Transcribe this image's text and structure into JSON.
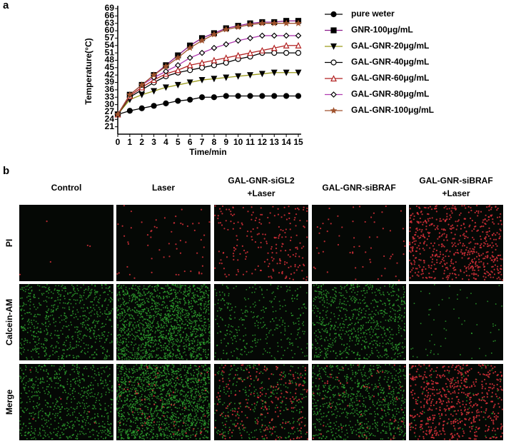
{
  "panel_labels": [
    "a",
    "b"
  ],
  "chart_data": {
    "type": "line",
    "ylabel": "Temperature(°C)",
    "xlabel": "Time/min",
    "x": [
      0,
      1,
      2,
      3,
      4,
      5,
      6,
      7,
      8,
      9,
      10,
      11,
      12,
      13,
      14,
      15
    ],
    "xlim": [
      0,
      15
    ],
    "xticks": [
      0,
      1,
      2,
      3,
      4,
      5,
      6,
      7,
      8,
      9,
      10,
      11,
      12,
      13,
      14,
      15
    ],
    "ylim": [
      18,
      69
    ],
    "yticks": [
      21,
      24,
      27,
      30,
      33,
      36,
      39,
      42,
      45,
      48,
      51,
      54,
      57,
      60,
      63,
      66,
      69
    ],
    "legend": "right",
    "series": [
      {
        "name": "pure weter",
        "color": "#000000",
        "marker": "circle",
        "values": [
          26,
          27.5,
          28.5,
          29.5,
          30.5,
          31.5,
          32,
          33,
          33,
          33.5,
          33.5,
          33.5,
          33.5,
          33.5,
          33.5,
          33.5
        ]
      },
      {
        "name": "GNR-100μg/mL",
        "color": "#8b1a8b",
        "marker": "square",
        "values": [
          26,
          34,
          38,
          42,
          46,
          50,
          54,
          57,
          59,
          61,
          62,
          63,
          63.5,
          63.5,
          64,
          64
        ]
      },
      {
        "name": "GAL-GNR-20μg/mL",
        "color": "#9a9a1a",
        "marker": "triangle-down",
        "values": [
          26,
          32,
          34,
          35.5,
          37,
          38,
          39,
          40,
          40.5,
          41,
          41.5,
          42,
          42.5,
          43,
          43,
          43
        ]
      },
      {
        "name": "GAL-GNR-40μg/mL",
        "color": "#000000",
        "marker": "circle-open",
        "values": [
          26,
          33,
          36,
          39,
          41.5,
          43,
          44,
          45,
          46,
          47,
          48.5,
          49.5,
          51,
          51,
          51,
          51
        ]
      },
      {
        "name": "GAL-GNR-60μg/mL",
        "color": "#b22222",
        "marker": "triangle-open",
        "values": [
          26,
          33.5,
          37,
          40,
          42.5,
          44,
          46,
          47,
          48,
          49,
          50,
          51,
          52,
          53,
          54,
          54
        ]
      },
      {
        "name": "GAL-GNR-80μg/mL",
        "color": "#b03ab0",
        "marker": "diamond-open",
        "values": [
          26,
          34,
          38,
          41,
          43.5,
          46,
          49,
          51,
          53,
          54.5,
          56,
          57,
          58,
          58,
          58,
          58
        ]
      },
      {
        "name": "GAL-GNR-100μg/mL",
        "color": "#a0522d",
        "marker": "star",
        "values": [
          26,
          34,
          38,
          42,
          45.5,
          49,
          53,
          56,
          58.5,
          60.5,
          61.5,
          62.5,
          63,
          63,
          63,
          63
        ]
      }
    ]
  },
  "image_grid": {
    "columns": [
      [
        "Control"
      ],
      [
        "Laser"
      ],
      [
        "GAL-GNR-siGL2",
        "+Laser"
      ],
      [
        "GAL-GNR-siBRAF"
      ],
      [
        "GAL-GNR-siBRAF",
        "+Laser"
      ]
    ],
    "rows": [
      "PI",
      "Calcein-AM",
      "Merge"
    ]
  }
}
